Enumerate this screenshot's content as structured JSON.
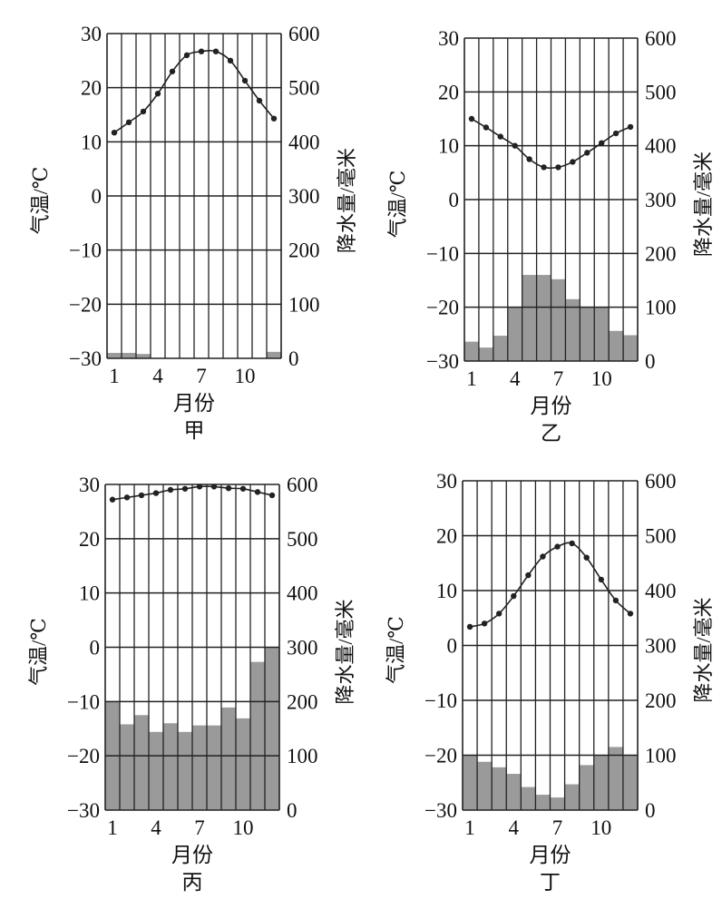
{
  "chart_data": [
    {
      "type": "bar+line",
      "title": "甲",
      "xlabel": "月份",
      "ylabel_left": "气温/℃",
      "ylabel_right": "降水量/毫米",
      "months": [
        1,
        2,
        3,
        4,
        5,
        6,
        7,
        8,
        9,
        10,
        11,
        12
      ],
      "x_ticks": [
        "1",
        "4",
        "7",
        "10"
      ],
      "temp_ticks": [
        "30",
        "20",
        "10",
        "0",
        "−10",
        "−20",
        "−30"
      ],
      "precip_ticks": [
        "600",
        "500",
        "400",
        "300",
        "200",
        "100",
        "0"
      ],
      "temp_range": [
        -30,
        30
      ],
      "precip_range": [
        0,
        600
      ],
      "temperature": [
        11.7,
        13.6,
        15.6,
        18.9,
        23,
        26,
        26.7,
        26.7,
        25,
        21.3,
        17.6,
        14.3
      ],
      "precipitation": [
        10,
        10,
        8,
        0,
        0,
        0,
        0,
        0,
        0,
        0,
        0,
        12
      ]
    },
    {
      "type": "bar+line",
      "title": "乙",
      "xlabel": "月份",
      "ylabel_left": "气温/℃",
      "ylabel_right": "降水量/毫米",
      "months": [
        1,
        2,
        3,
        4,
        5,
        6,
        7,
        8,
        9,
        10,
        11,
        12
      ],
      "x_ticks": [
        "1",
        "4",
        "7",
        "10"
      ],
      "temp_ticks": [
        "30",
        "20",
        "10",
        "0",
        "−10",
        "−20",
        "−30"
      ],
      "precip_ticks": [
        "600",
        "500",
        "400",
        "300",
        "200",
        "100",
        "0"
      ],
      "temp_range": [
        -30,
        30
      ],
      "precip_range": [
        0,
        600
      ],
      "temperature": [
        15,
        13.4,
        11.7,
        10,
        7.5,
        6,
        6,
        7,
        8.7,
        10.5,
        12.3,
        13.5
      ],
      "precipitation": [
        36,
        25,
        47,
        100,
        160,
        160,
        152,
        115,
        100,
        100,
        56,
        48
      ]
    },
    {
      "type": "bar+line",
      "title": "丙",
      "xlabel": "月份",
      "ylabel_left": "气温/℃",
      "ylabel_right": "降水量/毫米",
      "months": [
        1,
        2,
        3,
        4,
        5,
        6,
        7,
        8,
        9,
        10,
        11,
        12
      ],
      "x_ticks": [
        "1",
        "4",
        "7",
        "10"
      ],
      "temp_ticks": [
        "30",
        "20",
        "10",
        "0",
        "−10",
        "−20",
        "−30"
      ],
      "precip_ticks": [
        "600",
        "500",
        "400",
        "300",
        "200",
        "100",
        "0"
      ],
      "temp_range": [
        -30,
        30
      ],
      "precip_range": [
        0,
        600
      ],
      "temperature": [
        27.2,
        27.6,
        28,
        28.4,
        29,
        29.2,
        29.6,
        29.6,
        29.3,
        29.2,
        28.6,
        28
      ],
      "precipitation": [
        200,
        158,
        175,
        144,
        160,
        144,
        156,
        156,
        189,
        169,
        273,
        300
      ]
    },
    {
      "type": "bar+line",
      "title": "丁",
      "xlabel": "月份",
      "ylabel_left": "气温/℃",
      "ylabel_right": "降水量/毫米",
      "months": [
        1,
        2,
        3,
        4,
        5,
        6,
        7,
        8,
        9,
        10,
        11,
        12
      ],
      "x_ticks": [
        "1",
        "4",
        "7",
        "10"
      ],
      "temp_ticks": [
        "30",
        "20",
        "10",
        "0",
        "−10",
        "−20",
        "−30"
      ],
      "precip_ticks": [
        "600",
        "500",
        "400",
        "300",
        "200",
        "100",
        "0"
      ],
      "temp_range": [
        -30,
        30
      ],
      "precip_range": [
        0,
        600
      ],
      "temperature": [
        3.4,
        4,
        5.8,
        9,
        12.8,
        16.2,
        18,
        18.6,
        16,
        12,
        8.2,
        5.8
      ],
      "precipitation": [
        100,
        88,
        78,
        66,
        42,
        28,
        23,
        47,
        82,
        100,
        115,
        100
      ]
    }
  ],
  "colors": {
    "bar": "#9a9a9a",
    "line": "#222222",
    "grid": "#222222"
  }
}
